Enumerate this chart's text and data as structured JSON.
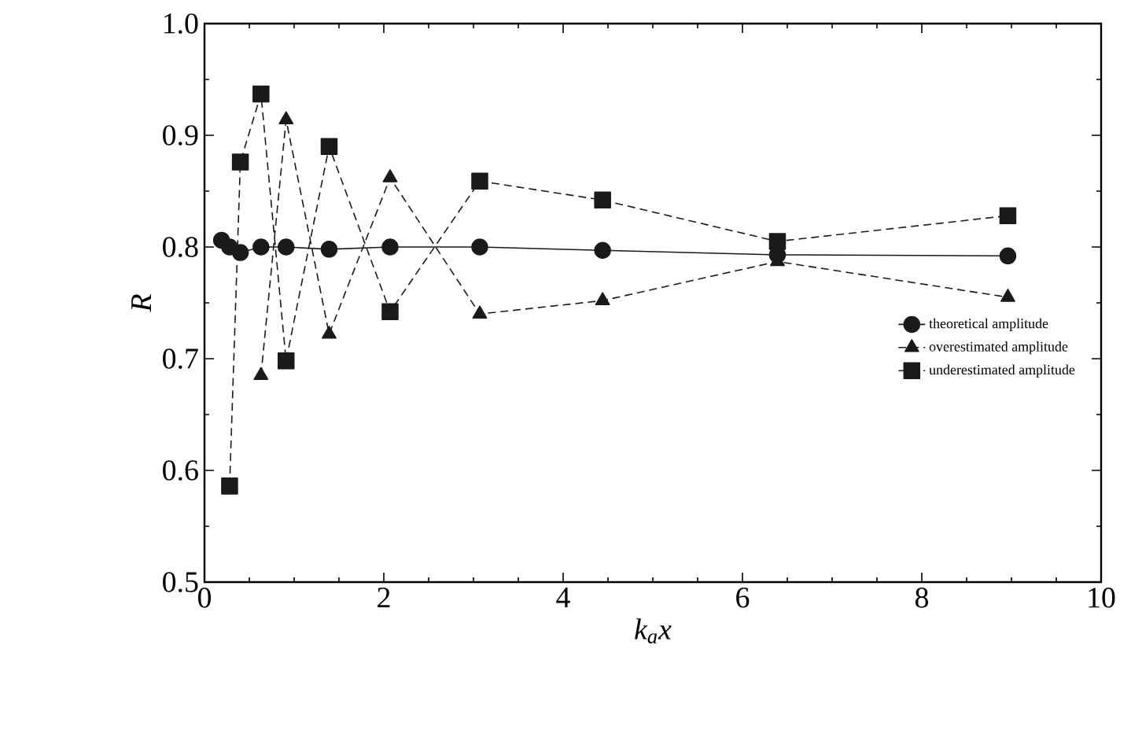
{
  "chart_data": {
    "type": "line",
    "xlabel": "k$_{a}$x",
    "ylabel": "R",
    "xlim": [
      0,
      10
    ],
    "xticks": [
      0,
      2,
      4,
      6,
      8,
      10
    ],
    "ylim": [
      0.5,
      1.0
    ],
    "yticks": [
      0.5,
      0.6,
      0.7,
      0.8,
      0.9,
      {
        "value": 1.0,
        "label": "1.0"
      }
    ],
    "legend": "right",
    "grid": false,
    "series": [
      {
        "name": "theoretical amplitude",
        "color": "#1a1a1a",
        "marker": "circle",
        "line_style": "solid",
        "x": [
          0.19,
          0.28,
          0.4,
          0.63,
          0.91,
          1.39,
          2.07,
          3.07,
          4.44,
          6.39,
          8.96
        ],
        "values": [
          0.806,
          0.8,
          0.795,
          0.8,
          0.8,
          0.798,
          0.8,
          0.8,
          0.797,
          0.793,
          0.792
        ]
      },
      {
        "name": "overestimated amplitude",
        "color": "#1a1a1a",
        "marker": "triangle",
        "line_style": "dashed",
        "x": [
          0.63,
          0.91,
          1.39,
          2.07,
          3.07,
          4.44,
          6.39,
          8.96
        ],
        "values": [
          0.685,
          0.914,
          0.722,
          0.862,
          0.74,
          0.752,
          0.787,
          0.755
        ]
      },
      {
        "name": "underestimated amplitude",
        "color": "#1a1a1a",
        "marker": "square",
        "line_style": "dashed",
        "x": [
          0.28,
          0.4,
          0.63,
          0.91,
          1.39,
          2.07,
          3.07,
          4.44,
          6.39,
          8.96
        ],
        "values": [
          0.586,
          0.876,
          0.937,
          0.698,
          0.89,
          0.742,
          0.859,
          0.842,
          0.805,
          0.828
        ]
      }
    ]
  }
}
